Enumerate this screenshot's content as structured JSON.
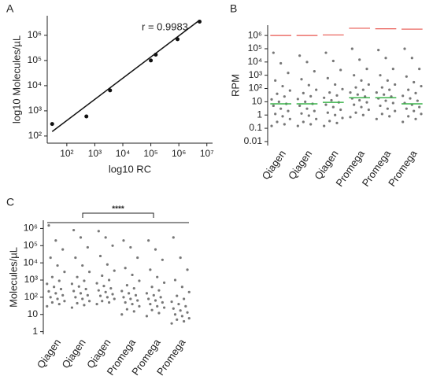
{
  "chart_data": [
    {
      "type": "scatter",
      "panel": "A",
      "annotation": "r = 0.9983",
      "x_label": "log10 RC",
      "y_label": "log10 Molecules/µL",
      "log_x": true,
      "log_y": true,
      "color": "#111111",
      "x": [
        30,
        500,
        3500,
        100000,
        150000,
        900000,
        5500000
      ],
      "values": [
        300,
        600,
        6500,
        100000,
        170000,
        700000,
        3500000
      ],
      "fit_line": {
        "x": [
          30,
          5500000
        ],
        "y": [
          150,
          4000000
        ]
      },
      "xlim": [
        20,
        16000000
      ],
      "ylim": [
        52,
        6000000
      ],
      "xticks": [
        {
          "value": 100,
          "label": "10²"
        },
        {
          "value": 1000,
          "label": "10³"
        },
        {
          "value": 10000,
          "label": "10⁴"
        },
        {
          "value": 100000,
          "label": "10⁵"
        },
        {
          "value": 1000000,
          "label": "10⁶"
        },
        {
          "value": 10000000,
          "label": "10⁷"
        }
      ],
      "yticks": [
        {
          "value": 100,
          "label": "10²"
        },
        {
          "value": 1000,
          "label": "10³"
        },
        {
          "value": 10000,
          "label": "10⁴"
        },
        {
          "value": 100000,
          "label": "10⁵"
        },
        {
          "value": 1000000,
          "label": "10⁶"
        }
      ]
    },
    {
      "type": "dot",
      "panel": "B",
      "y_label": "RPM",
      "log_y": true,
      "color": "#777777",
      "upper_color": "#e8554e",
      "median_color": "#3cb44b",
      "categories": [
        "Qiagen",
        "Qiagen",
        "Qiagen",
        "Promega",
        "Promega",
        "Promega"
      ],
      "values": [
        [
          0.15,
          0.2,
          0.3,
          0.5,
          0.8,
          1.2,
          2,
          3,
          5,
          7,
          10,
          15,
          25,
          40,
          70,
          150,
          400,
          1500,
          8000,
          50000
        ],
        [
          0.15,
          0.2,
          0.3,
          0.5,
          0.9,
          1.3,
          2,
          3,
          5,
          7,
          10,
          16,
          26,
          45,
          80,
          180,
          500,
          2000,
          10000,
          30000
        ],
        [
          0.15,
          0.25,
          0.35,
          0.6,
          1,
          1.5,
          2.5,
          4,
          6,
          9,
          13,
          20,
          30,
          50,
          90,
          200,
          600,
          2500,
          12000,
          50000
        ],
        [
          0.7,
          1,
          1.5,
          2.5,
          4,
          6,
          9,
          13,
          18,
          25,
          35,
          50,
          80,
          120,
          200,
          400,
          1000,
          3000,
          15000,
          100000
        ],
        [
          0.5,
          0.8,
          1.2,
          2,
          3,
          5,
          8,
          12,
          18,
          25,
          35,
          50,
          80,
          120,
          200,
          400,
          1000,
          3000,
          20000,
          80000
        ],
        [
          0.3,
          0.5,
          0.8,
          1.2,
          2,
          3,
          4,
          6,
          8,
          12,
          18,
          28,
          45,
          80,
          150,
          300,
          800,
          3000,
          20000,
          100000
        ]
      ],
      "upper_lines": [
        1000000,
        1000000,
        1100000,
        3500000,
        3200000,
        3000000
      ],
      "medians": [
        7,
        7,
        9,
        20,
        20,
        7
      ],
      "ylim": [
        0.005,
        6000000
      ],
      "yticks": [
        0.01,
        0.1,
        1,
        10,
        {
          "value": 100,
          "label": "10²"
        },
        {
          "value": 1000,
          "label": "10³"
        },
        {
          "value": 10000,
          "label": "10⁴"
        },
        {
          "value": 100000,
          "label": "10⁵"
        },
        {
          "value": 1000000,
          "label": "10⁶"
        }
      ]
    },
    {
      "type": "dot",
      "panel": "C",
      "y_label": "Molecules/µL",
      "log_y": true,
      "color": "#777777",
      "annotation": "****",
      "categories": [
        "Qiagen",
        "Qiagen",
        "Qiagen",
        "Promega",
        "Promega",
        "Promega"
      ],
      "values": [
        [
          30,
          40,
          50,
          60,
          80,
          100,
          130,
          170,
          220,
          300,
          400,
          600,
          900,
          1500,
          3000,
          7000,
          20000,
          60000,
          200000,
          1500000
        ],
        [
          25,
          35,
          45,
          60,
          80,
          100,
          130,
          170,
          230,
          300,
          420,
          600,
          900,
          1500,
          3000,
          7000,
          20000,
          80000,
          300000,
          800000
        ],
        [
          40,
          50,
          60,
          80,
          100,
          120,
          150,
          200,
          250,
          330,
          450,
          650,
          1000,
          1800,
          3500,
          8000,
          25000,
          100000,
          300000,
          700000
        ],
        [
          10,
          15,
          20,
          30,
          40,
          50,
          65,
          80,
          100,
          130,
          170,
          230,
          330,
          500,
          900,
          2000,
          5000,
          20000,
          80000,
          200000
        ],
        [
          8,
          12,
          18,
          25,
          30,
          40,
          50,
          65,
          80,
          100,
          130,
          170,
          250,
          400,
          700,
          1500,
          4000,
          15000,
          60000,
          200000
        ],
        [
          3,
          4,
          5,
          6,
          8,
          10,
          13,
          17,
          22,
          30,
          40,
          55,
          80,
          120,
          200,
          400,
          1000,
          4000,
          20000,
          300000
        ]
      ],
      "ylim": [
        0.7,
        3000000
      ],
      "yticks": [
        1,
        10,
        {
          "value": 100,
          "label": "10²"
        },
        {
          "value": 1000,
          "label": "10³"
        },
        {
          "value": 10000,
          "label": "10⁴"
        },
        {
          "value": 100000,
          "label": "10⁵"
        },
        {
          "value": 1000000,
          "label": "10⁶"
        }
      ]
    }
  ]
}
